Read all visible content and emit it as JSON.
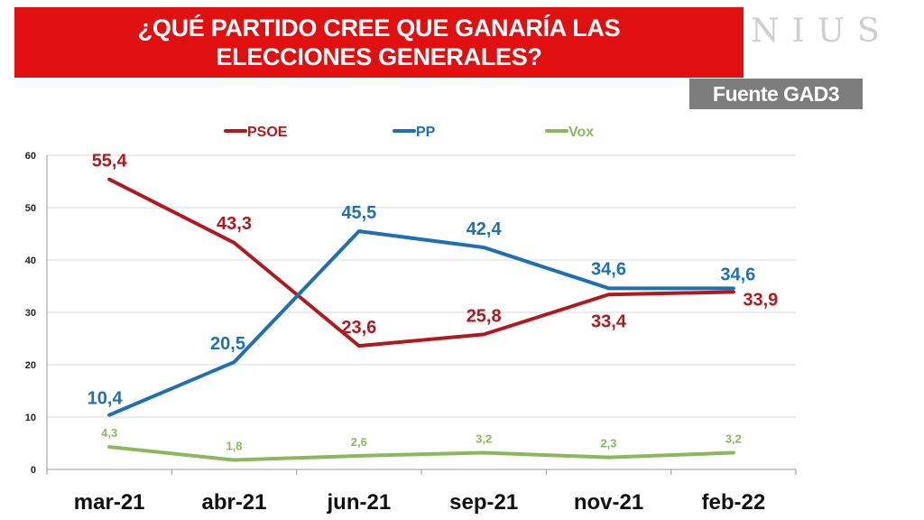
{
  "header": {
    "title": "¿QUÉ PARTIDO CREE QUE GANARÍA LAS ELECCIONES GENERALES?",
    "watermark": "NIUS",
    "source": "Fuente GAD3"
  },
  "chart_data": {
    "type": "line",
    "title": "¿QUÉ PARTIDO CREE QUE GANARÍA LAS ELECCIONES GENERALES?",
    "categories": [
      "mar-21",
      "abr-21",
      "jun-21",
      "sep-21",
      "nov-21",
      "feb-22"
    ],
    "ylim": [
      0,
      60
    ],
    "yticks": [
      "0",
      "10",
      "20",
      "30",
      "40",
      "50",
      "60"
    ],
    "grid": true,
    "legend": "top-center",
    "series": [
      {
        "name": "PSOE",
        "color": "#b0191e",
        "values": [
          55.4,
          43.3,
          23.6,
          25.8,
          33.4,
          33.9
        ],
        "labels": [
          "55,4",
          "43,3",
          "23,6",
          "25,8",
          "33,4",
          "33,9"
        ]
      },
      {
        "name": "PP",
        "color": "#1f6fb4",
        "values": [
          10.4,
          20.5,
          45.5,
          42.4,
          34.6,
          34.6
        ],
        "labels": [
          "10,4",
          "20,5",
          "45,5",
          "42,4",
          "34,6",
          "34,6"
        ]
      },
      {
        "name": "Vox",
        "color": "#8cb85c",
        "values": [
          4.3,
          1.8,
          2.6,
          3.2,
          2.3,
          3.2
        ],
        "labels": [
          "4,3",
          "1,8",
          "2,6",
          "3,2",
          "2,3",
          "3,2"
        ]
      }
    ]
  }
}
